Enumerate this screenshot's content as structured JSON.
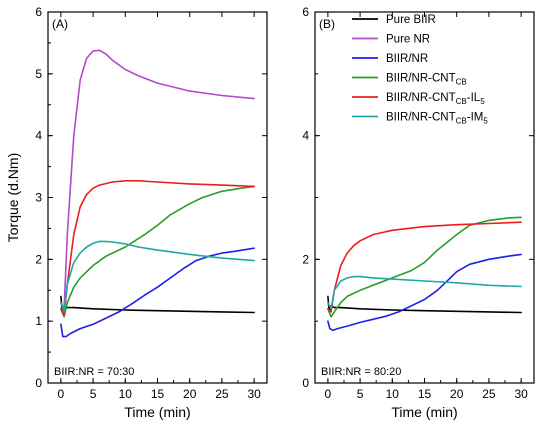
{
  "chart_data": [
    {
      "type": "line",
      "panel_label": "(A)",
      "ratio_label": "BIIR:NR = 70:30",
      "xlabel": "Time (min)",
      "ylabel": "Torque (d.Nm)",
      "xlim": [
        -2,
        32
      ],
      "ylim": [
        0,
        6
      ],
      "xticks": [
        "0",
        "5",
        "10",
        "15",
        "20",
        "25",
        "30"
      ],
      "yticks": [
        "0",
        "1",
        "2",
        "3",
        "4",
        "5",
        "6"
      ],
      "grid": false,
      "series": [
        {
          "name": "Pure BIIR",
          "color": "#000000",
          "x": [
            0,
            0.2,
            0.5,
            1,
            2,
            5,
            10,
            15,
            20,
            25,
            30
          ],
          "y": [
            1.4,
            1.15,
            1.25,
            1.22,
            1.22,
            1.2,
            1.18,
            1.17,
            1.16,
            1.15,
            1.14
          ]
        },
        {
          "name": "Pure NR",
          "color": "#b04cc8",
          "x": [
            0,
            0.5,
            1,
            2,
            3,
            4,
            5,
            6,
            7,
            8,
            10,
            12,
            15,
            20,
            25,
            30
          ],
          "y": [
            1.3,
            1.2,
            2.4,
            4.0,
            4.9,
            5.25,
            5.37,
            5.38,
            5.32,
            5.22,
            5.07,
            4.97,
            4.85,
            4.72,
            4.65,
            4.6
          ]
        },
        {
          "name": "BIIR/NR",
          "color": "#1f1fe8",
          "x": [
            0,
            0.3,
            0.8,
            1.5,
            3,
            5,
            7,
            9,
            11,
            13,
            15,
            17,
            19,
            21,
            23,
            25,
            27,
            30
          ],
          "y": [
            0.95,
            0.75,
            0.75,
            0.8,
            0.88,
            0.95,
            1.05,
            1.15,
            1.28,
            1.42,
            1.55,
            1.7,
            1.85,
            1.98,
            2.05,
            2.1,
            2.13,
            2.18
          ]
        },
        {
          "name": "BIIR/NR-CNT_CB",
          "color": "#2a9c2a",
          "x": [
            0,
            0.5,
            1,
            2,
            3,
            5,
            7,
            10,
            13,
            15,
            17,
            20,
            22,
            25,
            28,
            30
          ],
          "y": [
            1.2,
            1.07,
            1.3,
            1.55,
            1.7,
            1.9,
            2.05,
            2.2,
            2.4,
            2.55,
            2.72,
            2.9,
            3.0,
            3.1,
            3.15,
            3.18
          ]
        },
        {
          "name": "BIIR/NR-CNT_CB-IL_5",
          "color": "#ee1d1d",
          "x": [
            0,
            0.5,
            1,
            2,
            3,
            4,
            5,
            6,
            8,
            10,
            12,
            15,
            20,
            25,
            30
          ],
          "y": [
            1.2,
            1.1,
            1.6,
            2.4,
            2.85,
            3.05,
            3.15,
            3.2,
            3.25,
            3.27,
            3.27,
            3.25,
            3.22,
            3.2,
            3.18
          ]
        },
        {
          "name": "BIIR/NR-CNT_CB-IM_5",
          "color": "#1fa8a8",
          "x": [
            0,
            0.5,
            1,
            2,
            3,
            4,
            5,
            6,
            7,
            8,
            10,
            12,
            15,
            20,
            25,
            30
          ],
          "y": [
            1.3,
            1.15,
            1.6,
            1.95,
            2.1,
            2.2,
            2.26,
            2.29,
            2.29,
            2.28,
            2.25,
            2.2,
            2.15,
            2.08,
            2.02,
            1.98
          ]
        }
      ]
    },
    {
      "type": "line",
      "panel_label": "(B)",
      "ratio_label": "BIIR:NR = 80:20",
      "xlabel": "Time (min)",
      "ylabel": "",
      "xlim": [
        -2,
        32
      ],
      "ylim": [
        0,
        6
      ],
      "xticks": [
        "0",
        "5",
        "10",
        "15",
        "20",
        "25",
        "30"
      ],
      "yticks": [
        "0",
        "2",
        "4",
        "6"
      ],
      "grid": false,
      "series": [
        {
          "name": "Pure BIIR",
          "color": "#000000",
          "x": [
            0,
            0.2,
            0.5,
            1,
            2,
            5,
            10,
            15,
            20,
            25,
            30
          ],
          "y": [
            1.4,
            1.15,
            1.25,
            1.22,
            1.22,
            1.2,
            1.18,
            1.17,
            1.16,
            1.15,
            1.14
          ]
        },
        {
          "name": "BIIR/NR",
          "color": "#1f1fe8",
          "x": [
            0,
            0.3,
            0.8,
            1.5,
            3,
            5,
            7,
            9,
            11,
            13,
            15,
            17,
            19,
            20,
            22,
            25,
            28,
            30
          ],
          "y": [
            1.0,
            0.88,
            0.85,
            0.88,
            0.92,
            0.98,
            1.03,
            1.08,
            1.15,
            1.25,
            1.35,
            1.5,
            1.7,
            1.8,
            1.92,
            2.0,
            2.05,
            2.08
          ]
        },
        {
          "name": "BIIR/NR-CNT_CB",
          "color": "#2a9c2a",
          "x": [
            0,
            0.5,
            1,
            2,
            3,
            5,
            7,
            10,
            13,
            15,
            17,
            20,
            22,
            25,
            28,
            30
          ],
          "y": [
            1.2,
            1.07,
            1.15,
            1.3,
            1.4,
            1.5,
            1.58,
            1.7,
            1.82,
            1.95,
            2.15,
            2.4,
            2.55,
            2.63,
            2.67,
            2.68
          ]
        },
        {
          "name": "BIIR/NR-CNT_CB-IL_5",
          "color": "#ee1d1d",
          "x": [
            0,
            0.5,
            1,
            2,
            3,
            4,
            5,
            7,
            10,
            15,
            20,
            25,
            30
          ],
          "y": [
            1.2,
            1.15,
            1.5,
            1.9,
            2.1,
            2.22,
            2.3,
            2.4,
            2.47,
            2.53,
            2.56,
            2.58,
            2.6
          ]
        },
        {
          "name": "BIIR/NR-CNT_CB-IM_5",
          "color": "#1fa8a8",
          "x": [
            0,
            0.5,
            1,
            2,
            3,
            4,
            5,
            7,
            10,
            15,
            20,
            25,
            30
          ],
          "y": [
            1.3,
            1.2,
            1.5,
            1.65,
            1.7,
            1.72,
            1.72,
            1.7,
            1.68,
            1.65,
            1.62,
            1.58,
            1.56
          ]
        }
      ]
    }
  ],
  "legend": [
    {
      "label": "Pure BIIR",
      "color": "#000000"
    },
    {
      "label": "Pure NR",
      "color": "#b04cc8"
    },
    {
      "label": "BIIR/NR",
      "color": "#1f1fe8"
    },
    {
      "label": "BIIR/NR-CNT",
      "sub": "CB",
      "color": "#2a9c2a"
    },
    {
      "label": "BIIR/NR-CNT",
      "sub": "CB",
      "suffix": "-IL",
      "sub2": "5",
      "color": "#ee1d1d"
    },
    {
      "label": "BIIR/NR-CNT",
      "sub": "CB",
      "suffix": "-IM",
      "sub2": "5",
      "color": "#1fa8a8"
    }
  ]
}
